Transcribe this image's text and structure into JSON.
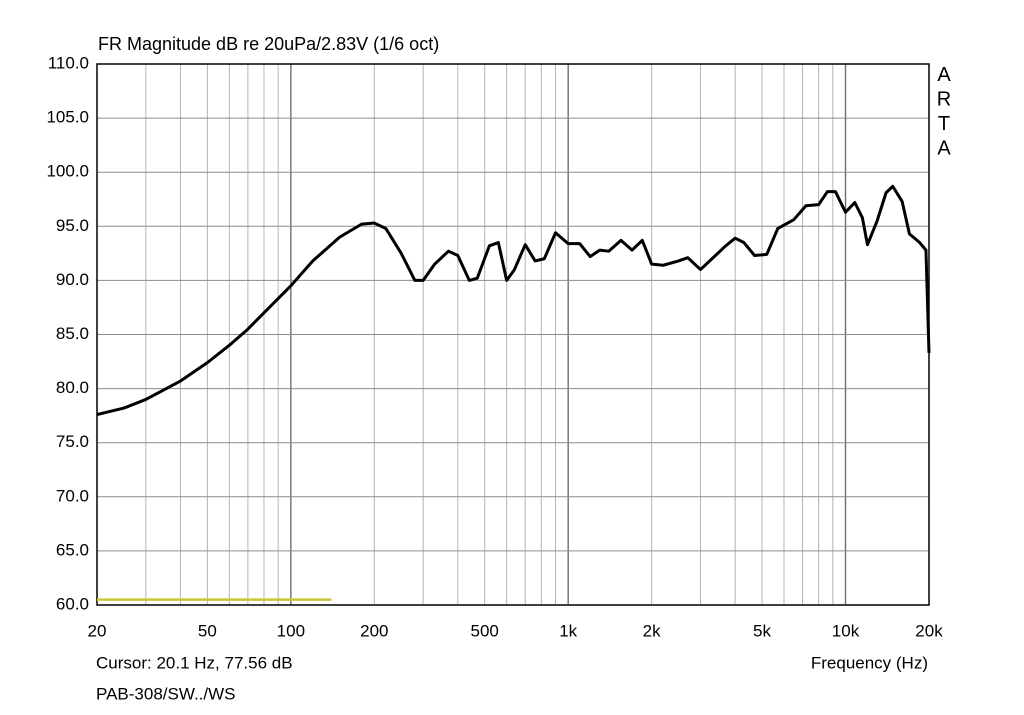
{
  "chart_data": {
    "type": "line",
    "title": "FR Magnitude dB re 20uPa/2.83V (1/6 oct)",
    "watermark": "ARTA",
    "xlabel": "Frequency (Hz)",
    "cursor_text": "Cursor: 20.1 Hz, 77.56 dB",
    "file_text": "PAB-308/SW../WS",
    "xscale": "log",
    "xlim": [
      20,
      20000
    ],
    "ylim": [
      60,
      110
    ],
    "xticks": [
      20,
      50,
      100,
      200,
      500,
      {
        "value": 1000,
        "label": "1k"
      },
      {
        "value": 2000,
        "label": "2k"
      },
      {
        "value": 5000,
        "label": "5k"
      },
      {
        "value": 10000,
        "label": "10k"
      },
      {
        "value": 20000,
        "label": "20k"
      }
    ],
    "xminor": [
      30,
      40,
      60,
      70,
      80,
      90,
      300,
      400,
      600,
      700,
      800,
      900,
      3000,
      4000,
      6000,
      7000,
      8000,
      9000
    ],
    "yticks": [
      {
        "value": 60,
        "label": "60.0"
      },
      {
        "value": 65,
        "label": "65.0"
      },
      {
        "value": 70,
        "label": "70.0"
      },
      {
        "value": 75,
        "label": "75.0"
      },
      {
        "value": 80,
        "label": "80.0"
      },
      {
        "value": 85,
        "label": "85.0"
      },
      {
        "value": 90,
        "label": "90.0"
      },
      {
        "value": 95,
        "label": "95.0"
      },
      {
        "value": 100,
        "label": "100.0"
      },
      {
        "value": 105,
        "label": "105.0"
      },
      {
        "value": 110,
        "label": "110.0"
      }
    ],
    "grid": true,
    "series": [
      {
        "color": "#000000",
        "x": [
          20,
          25,
          30,
          40,
          50,
          60,
          70,
          80,
          100,
          120,
          150,
          180,
          200,
          220,
          250,
          280,
          300,
          330,
          370,
          400,
          440,
          470,
          520,
          560,
          600,
          640,
          700,
          760,
          820,
          900,
          1000,
          1100,
          1200,
          1300,
          1400,
          1550,
          1700,
          1850,
          2000,
          2200,
          2500,
          2700,
          3000,
          3300,
          3700,
          4000,
          4300,
          4700,
          5200,
          5700,
          6500,
          7200,
          8000,
          8600,
          9200,
          10000,
          10800,
          11500,
          12000,
          13000,
          14000,
          14800,
          16000,
          17000,
          18500,
          19500,
          20000
        ],
        "values": [
          77.6,
          78.2,
          79.0,
          80.7,
          82.4,
          84.0,
          85.5,
          87.0,
          89.5,
          91.8,
          94.0,
          95.2,
          95.3,
          94.8,
          92.5,
          90.0,
          90.0,
          91.5,
          92.7,
          92.3,
          90.0,
          90.2,
          93.2,
          93.5,
          90.0,
          91.0,
          93.3,
          91.8,
          92.0,
          94.4,
          93.4,
          93.4,
          92.2,
          92.8,
          92.7,
          93.7,
          92.8,
          93.7,
          91.5,
          91.4,
          91.8,
          92.1,
          91.0,
          92.0,
          93.2,
          93.9,
          93.5,
          92.3,
          92.4,
          94.8,
          95.6,
          96.9,
          97.0,
          98.2,
          98.2,
          96.3,
          97.2,
          95.8,
          93.3,
          95.5,
          98.1,
          98.7,
          97.3,
          94.3,
          93.5,
          92.8,
          83.3
        ]
      },
      {
        "color": "#c8c832",
        "x": [
          20,
          140
        ],
        "values": [
          60.5,
          60.5
        ]
      }
    ]
  }
}
